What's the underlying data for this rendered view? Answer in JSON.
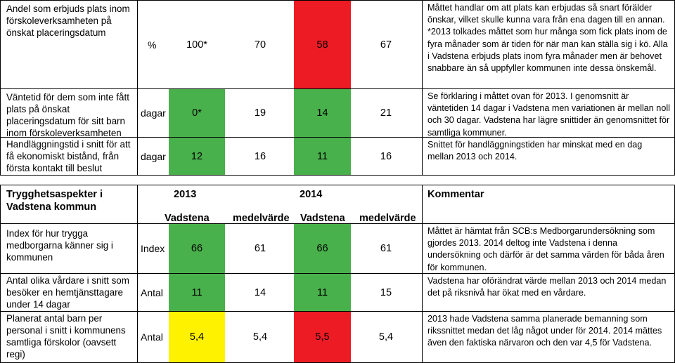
{
  "colors": {
    "green": "#49b14b",
    "red": "#ed1c24",
    "yellow": "#fff200",
    "border": "#000000"
  },
  "top_table": {
    "rows": [
      {
        "label": "Andel som erbjuds plats inom förskoleverksamheten på önskat placeringsdatum",
        "unit": "%",
        "values": [
          "100*",
          "70",
          "58",
          "67"
        ],
        "highlight": [
          "",
          "",
          "red",
          ""
        ],
        "comment": "Måttet handlar om att plats kan erbjudas så snart förälder önskar, vilket skulle kunna vara från ena dagen till en annan. *2013 tolkades måttet som hur många som fick plats inom de fyra månader som är tiden för när man kan ställa sig i kö. Alla i Vadstena erbjuds plats inom fyra månader men är behovet snabbare än så uppfyller kommunen inte dessa önskemål."
      },
      {
        "label": "Väntetid för dem som inte fått plats på önskat placeringsdatum för sitt barn inom förskoleverksamheten",
        "unit": "dagar",
        "values": [
          "0*",
          "19",
          "14",
          "21"
        ],
        "highlight": [
          "green",
          "",
          "green",
          ""
        ],
        "comment": "Se förklaring i måttet ovan för 2013. I genomsnitt är väntetiden 14 dagar i Vadstena men variationen är mellan noll och 30 dagar. Vadstena har lägre snittider än genomsnittet för samtliga kommuner."
      },
      {
        "label": "Handläggningstid i snitt för att få ekonomiskt bistånd, från första kontakt till beslut",
        "unit": "dagar",
        "values": [
          "12",
          "16",
          "11",
          "16"
        ],
        "highlight": [
          "green",
          "",
          "green",
          ""
        ],
        "comment": "Snittet för handläggningstiden har minskat med en dag mellan 2013 och 2014."
      }
    ]
  },
  "bottom_table": {
    "title": "Trygghetsaspekter i Vadstena kommun",
    "year_2013": "2013",
    "year_2014": "2014",
    "comment_header": "Kommentar",
    "col_headers": [
      "Vadstena",
      "medelvärde",
      "Vadstena",
      "medelvärde"
    ],
    "rows": [
      {
        "label": "Index för hur trygga medborgarna känner sig i kommunen",
        "unit": "Index",
        "values": [
          "66",
          "61",
          "66",
          "61"
        ],
        "highlight": [
          "green",
          "",
          "green",
          ""
        ],
        "comment": "Måttet är hämtat från SCB:s Medborgarundersökning som gjordes 2013. 2014 deltog inte Vadstena i denna undersökning och därför är det samma värden för båda åren för kommunen."
      },
      {
        "label": "Antal olika vårdare i snitt som besöker en hemtjänsttagare under 14 dagar",
        "unit": "Antal",
        "values": [
          "11",
          "14",
          "11",
          "15"
        ],
        "highlight": [
          "green",
          "",
          "green",
          ""
        ],
        "comment": "Vadstena har oförändrat värde mellan 2013 och 2014 medan det på riksnivå har ökat med en vårdare."
      },
      {
        "label": "Planerat antal barn per personal i snitt i kommunens samtliga förskolor (oavsett regi)",
        "unit": "Antal",
        "values": [
          "5,4",
          "5,4",
          "5,5",
          "5,4"
        ],
        "highlight": [
          "yellow",
          "",
          "red",
          ""
        ],
        "comment": "2013 hade Vadstena samma planerade bemanning som rikssnittet medan det låg något under för 2014. 2014 mättes även den faktiska närvaron och den var 4,5 för Vadstena."
      }
    ]
  }
}
